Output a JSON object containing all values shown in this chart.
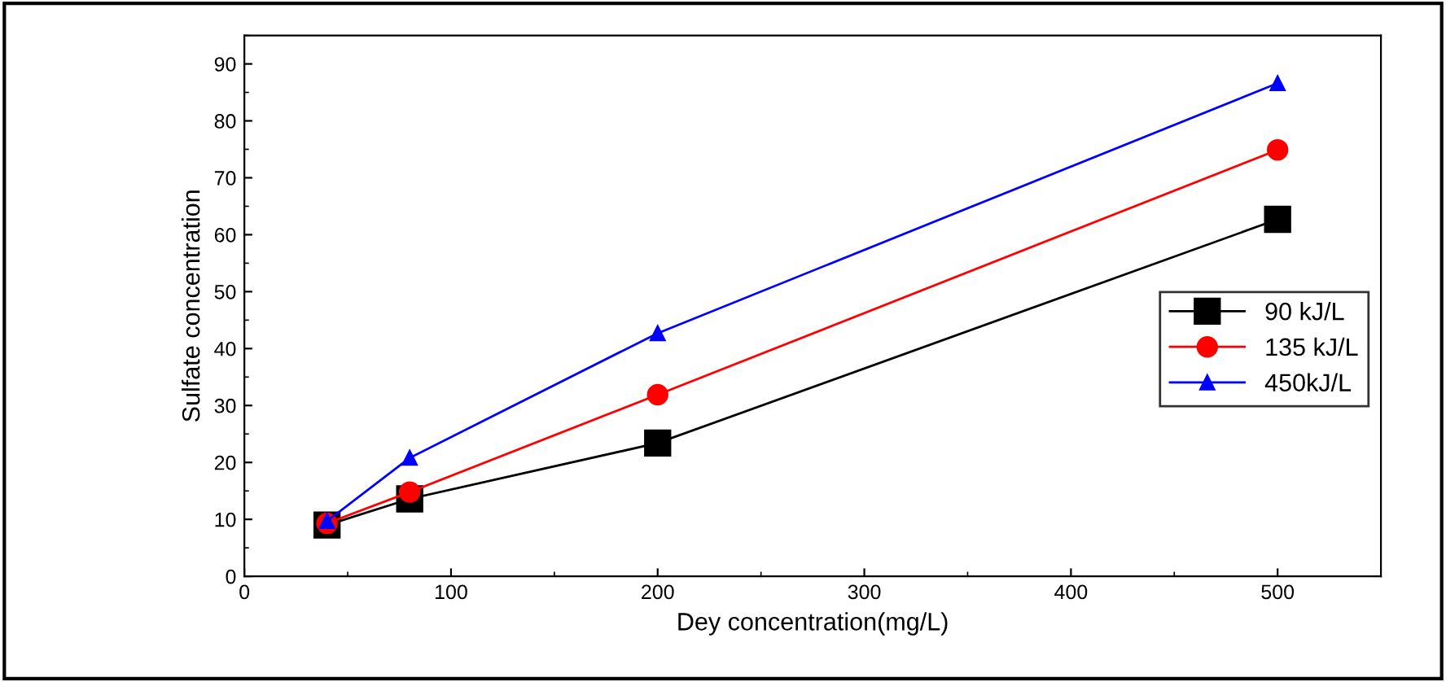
{
  "chart_data": {
    "type": "line",
    "xlabel": "Dey concentration(mg/L)",
    "ylabel": "Sulfate concentration",
    "x": [
      40,
      80,
      200,
      500
    ],
    "series": [
      {
        "name": "90 kJ/L",
        "color": "#000000",
        "marker": "square",
        "values": [
          9,
          13.6,
          23.4,
          62.7
        ]
      },
      {
        "name": "135 kJ/L",
        "color": "#ff0000",
        "marker": "circle",
        "values": [
          9.3,
          14.8,
          31.9,
          74.9
        ]
      },
      {
        "name": "450kJ/L",
        "color": "#0000ff",
        "marker": "triangle",
        "values": [
          9.7,
          20.8,
          42.7,
          86.6
        ]
      }
    ],
    "xlim": [
      0,
      550
    ],
    "xticks": [
      0,
      100,
      200,
      300,
      400,
      500
    ],
    "ylim": [
      0,
      95
    ],
    "yticks": [
      0,
      10,
      20,
      30,
      40,
      50,
      60,
      70,
      80,
      90
    ],
    "grid": false,
    "legend": "right",
    "line_style": "solid"
  }
}
